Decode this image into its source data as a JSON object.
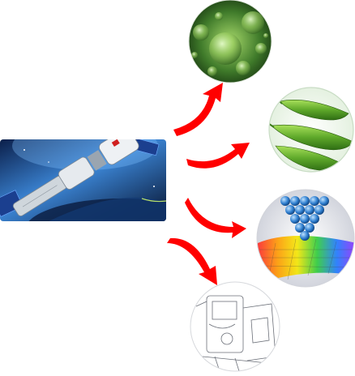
{
  "diagram": {
    "source": {
      "name": "space-station-docking"
    },
    "targets": [
      {
        "name": "microbes-cells"
      },
      {
        "name": "pea-pods"
      },
      {
        "name": "nanomaterial-lattice"
      },
      {
        "name": "mechanical-sketch"
      }
    ],
    "arrow_color": "#ff0000",
    "colors": {
      "space_blue": "#0a2a6a",
      "cell_green": "#3f7a2a",
      "pea_green": "#5ea82a",
      "atom_blue": "#2f7fd0"
    }
  }
}
